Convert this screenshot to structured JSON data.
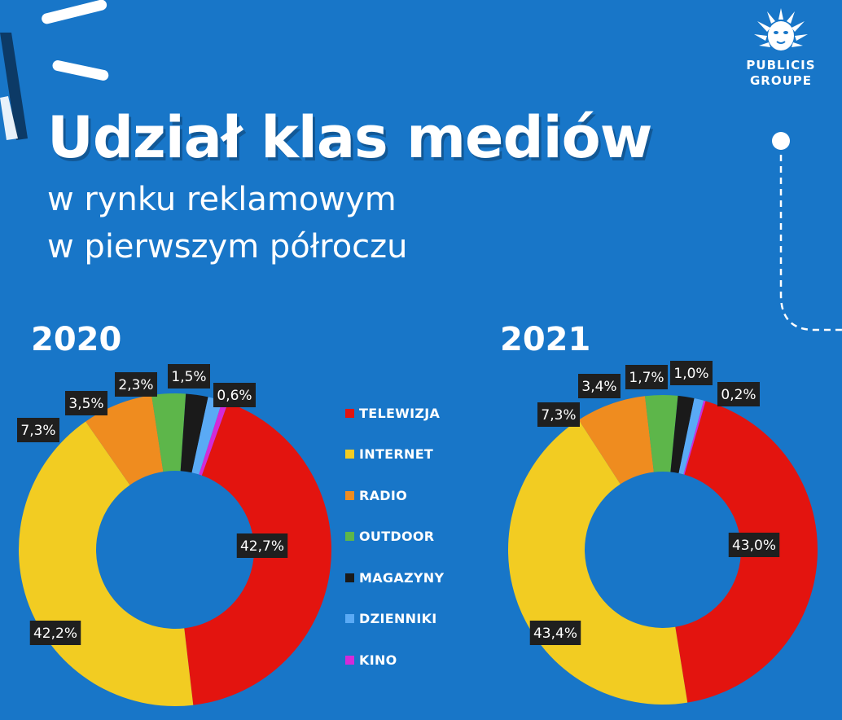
{
  "title": "Udział klas mediów",
  "subtitle_line1": "w rynku reklamowym",
  "subtitle_line2": "w pierwszym półroczu",
  "logo": {
    "line1": "PUBLICIS",
    "line2": "GROUPE"
  },
  "colors": {
    "background": "#1876c8",
    "TELEWIZJA": "#e3140f",
    "INTERNET": "#f2cc22",
    "RADIO": "#ef8c1f",
    "OUTDOOR": "#5db64a",
    "MAGAZYNY": "#1a1a1a",
    "DZIENNIKI": "#5aaaf5",
    "KINO": "#d42ad8",
    "label_box": "#1f1f1f"
  },
  "legend": [
    "TELEWIZJA",
    "INTERNET",
    "RADIO",
    "OUTDOOR",
    "MAGAZYNY",
    "DZIENNIKI",
    "KINO"
  ],
  "chart_data": [
    {
      "type": "pie",
      "title": "2020",
      "categories": [
        "TELEWIZJA",
        "INTERNET",
        "RADIO",
        "OUTDOOR",
        "MAGAZYNY",
        "DZIENNIKI",
        "KINO"
      ],
      "values": [
        42.7,
        42.2,
        7.3,
        3.5,
        2.3,
        1.5,
        0.6
      ],
      "labels": [
        "42,7%",
        "42,2%",
        "7,3%",
        "3,5%",
        "2,3%",
        "1,5%",
        "0,6%"
      ]
    },
    {
      "type": "pie",
      "title": "2021",
      "categories": [
        "TELEWIZJA",
        "INTERNET",
        "RADIO",
        "OUTDOOR",
        "MAGAZYNY",
        "DZIENNIKI",
        "KINO"
      ],
      "values": [
        43.0,
        43.4,
        7.3,
        3.4,
        1.7,
        1.0,
        0.2
      ],
      "labels": [
        "43,0%",
        "43,4%",
        "7,3%",
        "3,4%",
        "1,7%",
        "1,0%",
        "0,2%"
      ]
    }
  ]
}
